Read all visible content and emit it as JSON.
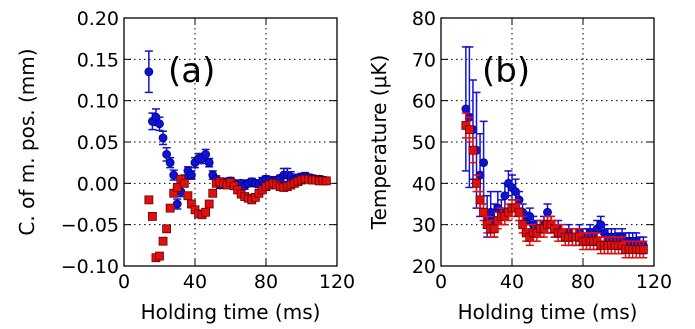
{
  "chart_data": [
    {
      "type": "scatter",
      "panel_label": "(a)",
      "xlabel": "Holding time (ms)",
      "ylabel": "C. of m. pos. (mm)",
      "xlim": [
        0,
        120
      ],
      "ylim": [
        -0.1,
        0.2
      ],
      "xticks": [
        0,
        40,
        80,
        120
      ],
      "yticks": [
        -0.1,
        -0.05,
        0.0,
        0.05,
        0.1,
        0.15,
        0.2
      ],
      "xtick_labels": [
        "0",
        "40",
        "80",
        "120"
      ],
      "ytick_labels": [
        "−0.10",
        "−0.05",
        "0.00",
        "0.05",
        "0.10",
        "0.15",
        "0.20"
      ],
      "grid": true,
      "series": [
        {
          "color": "#1010d8",
          "marker": "circle",
          "x": [
            14,
            16,
            18,
            20,
            22,
            24,
            26,
            28,
            30,
            32,
            34,
            36,
            38,
            40,
            42,
            44,
            46,
            48,
            50,
            52,
            54,
            56,
            58,
            60,
            62,
            64,
            66,
            68,
            70,
            72,
            74,
            76,
            78,
            80,
            82,
            84,
            86,
            88,
            90,
            92,
            94,
            96,
            98,
            100,
            102,
            104,
            106,
            108,
            110,
            112,
            114
          ],
          "y": [
            0.135,
            0.075,
            0.08,
            0.072,
            0.055,
            0.035,
            0.025,
            0.01,
            -0.025,
            -0.01,
            0.005,
            0.015,
            0.01,
            0.025,
            0.03,
            0.03,
            0.035,
            0.025,
            0.01,
            0.005,
            -0.002,
            0.001,
            0.002,
            0.003,
            0.0,
            -0.002,
            0.0,
            -0.003,
            0.0,
            0.002,
            0.0,
            -0.001,
            0.003,
            0.005,
            0.004,
            0.003,
            0.004,
            0.006,
            0.01,
            0.01,
            0.008,
            0.005,
            0.006,
            0.007,
            0.008,
            0.007,
            0.006,
            0.005,
            0.005,
            0.004,
            0.003
          ],
          "err": [
            0.025,
            0.01,
            0.01,
            0.008,
            0.008,
            0.008,
            0.006,
            0.006,
            0.006,
            0.006,
            0.005,
            0.005,
            0.005,
            0.006,
            0.006,
            0.006,
            0.006,
            0.005,
            0.005,
            0.004,
            0.004,
            0.004,
            0.004,
            0.004,
            0.004,
            0.004,
            0.004,
            0.004,
            0.004,
            0.004,
            0.004,
            0.004,
            0.004,
            0.004,
            0.004,
            0.004,
            0.004,
            0.004,
            0.008,
            0.008,
            0.006,
            0.006,
            0.005,
            0.005,
            0.005,
            0.004,
            0.004,
            0.004,
            0.004,
            0.004,
            0.004
          ]
        },
        {
          "color": "#e01010",
          "marker": "square",
          "x": [
            14,
            16,
            18,
            20,
            22,
            24,
            26,
            28,
            30,
            32,
            34,
            36,
            38,
            40,
            42,
            44,
            46,
            48,
            50,
            52,
            54,
            56,
            58,
            60,
            62,
            64,
            66,
            68,
            70,
            72,
            74,
            76,
            78,
            80,
            82,
            84,
            86,
            88,
            90,
            92,
            94,
            96,
            98,
            100,
            102,
            104,
            106,
            108,
            110,
            112,
            114
          ],
          "y": [
            -0.02,
            -0.04,
            -0.09,
            -0.088,
            -0.07,
            -0.055,
            -0.03,
            -0.012,
            -0.005,
            0.005,
            0.0,
            -0.015,
            -0.025,
            -0.032,
            -0.037,
            -0.038,
            -0.035,
            -0.025,
            -0.012,
            0.0,
            0.002,
            0.0,
            -0.002,
            0.001,
            -0.003,
            -0.008,
            -0.013,
            -0.016,
            -0.018,
            -0.02,
            -0.017,
            -0.012,
            -0.008,
            -0.004,
            -0.002,
            0.0,
            -0.002,
            -0.004,
            -0.005,
            -0.004,
            -0.002,
            0.0,
            0.002,
            0.004,
            0.005,
            0.005,
            0.004,
            0.004,
            0.003,
            0.003,
            0.003
          ],
          "err": [
            0.004,
            0.004,
            0.004,
            0.004,
            0.004,
            0.004,
            0.004,
            0.004,
            0.004,
            0.004,
            0.004,
            0.004,
            0.004,
            0.004,
            0.004,
            0.004,
            0.004,
            0.004,
            0.004,
            0.004,
            0.004,
            0.004,
            0.004,
            0.004,
            0.004,
            0.004,
            0.004,
            0.004,
            0.004,
            0.004,
            0.004,
            0.004,
            0.004,
            0.004,
            0.004,
            0.004,
            0.004,
            0.004,
            0.004,
            0.004,
            0.004,
            0.004,
            0.004,
            0.004,
            0.004,
            0.004,
            0.004,
            0.004,
            0.004,
            0.004,
            0.004
          ]
        }
      ]
    },
    {
      "type": "scatter",
      "panel_label": "(b)",
      "xlabel": "Holding time (ms)",
      "ylabel": "Temperature (μK)",
      "xlim": [
        0,
        120
      ],
      "ylim": [
        20,
        80
      ],
      "xticks": [
        0,
        40,
        80,
        120
      ],
      "yticks": [
        20,
        30,
        40,
        50,
        60,
        70,
        80
      ],
      "xtick_labels": [
        "0",
        "40",
        "80",
        "120"
      ],
      "ytick_labels": [
        "20",
        "30",
        "40",
        "50",
        "60",
        "70",
        "80"
      ],
      "grid": true,
      "series": [
        {
          "color": "#1010d8",
          "marker": "circle",
          "x": [
            14,
            16,
            18,
            20,
            22,
            24,
            26,
            28,
            30,
            32,
            34,
            36,
            38,
            40,
            42,
            44,
            46,
            48,
            50,
            52,
            54,
            56,
            58,
            60,
            62,
            64,
            66,
            68,
            70,
            72,
            74,
            76,
            78,
            80,
            82,
            84,
            86,
            88,
            90,
            92,
            94,
            96,
            98,
            100,
            102,
            104,
            106,
            108,
            110,
            112,
            114
          ],
          "y": [
            58,
            56,
            53,
            48,
            42,
            45,
            32,
            33,
            31,
            34,
            33,
            37,
            40,
            39,
            38,
            36,
            33,
            31,
            32,
            30,
            29,
            29,
            30,
            33,
            30,
            29,
            29,
            28,
            27,
            28,
            27,
            27,
            28,
            27,
            27,
            28,
            27,
            29,
            30,
            28,
            27,
            27,
            27,
            26,
            27,
            26,
            26,
            26,
            26,
            25,
            25
          ],
          "err": [
            15,
            17,
            12,
            14,
            10,
            10,
            5,
            5,
            4,
            4,
            3,
            3,
            3,
            3,
            3,
            2,
            2,
            2,
            2,
            2,
            2,
            2,
            2,
            2,
            2,
            2,
            2,
            2,
            2,
            2,
            2,
            2,
            2,
            2,
            2,
            2,
            2,
            2,
            2,
            2,
            2,
            2,
            2,
            2,
            2,
            2,
            2,
            2,
            2,
            2,
            2
          ]
        },
        {
          "color": "#e01010",
          "marker": "square",
          "x": [
            14,
            16,
            18,
            20,
            22,
            24,
            26,
            28,
            30,
            32,
            34,
            36,
            38,
            40,
            42,
            44,
            46,
            48,
            50,
            52,
            54,
            56,
            58,
            60,
            62,
            64,
            66,
            68,
            70,
            72,
            74,
            76,
            78,
            80,
            82,
            84,
            86,
            88,
            90,
            92,
            94,
            96,
            98,
            100,
            102,
            104,
            106,
            108,
            110,
            112,
            114
          ],
          "y": [
            54,
            53,
            48,
            40,
            36,
            33,
            30,
            29,
            29,
            31,
            32,
            32,
            33,
            34,
            34,
            33,
            30,
            28,
            27,
            28,
            28,
            29,
            29,
            30,
            30,
            29,
            28,
            28,
            27,
            27,
            27,
            27,
            27,
            26,
            26,
            26,
            26,
            26,
            25,
            25,
            25,
            25,
            25,
            25,
            25,
            24,
            24,
            24,
            24,
            24,
            24
          ],
          "err": [
            3,
            3,
            3,
            2,
            2,
            2,
            2,
            2,
            2,
            2,
            2,
            2,
            2,
            2,
            2,
            2,
            2,
            2,
            2,
            2,
            2,
            2,
            2,
            2,
            2,
            2,
            2,
            2,
            2,
            2,
            2,
            2,
            2,
            2,
            2,
            2,
            2,
            2,
            2,
            2,
            2,
            2,
            2,
            2,
            2,
            2,
            2,
            2,
            2,
            2,
            2
          ]
        }
      ]
    }
  ]
}
